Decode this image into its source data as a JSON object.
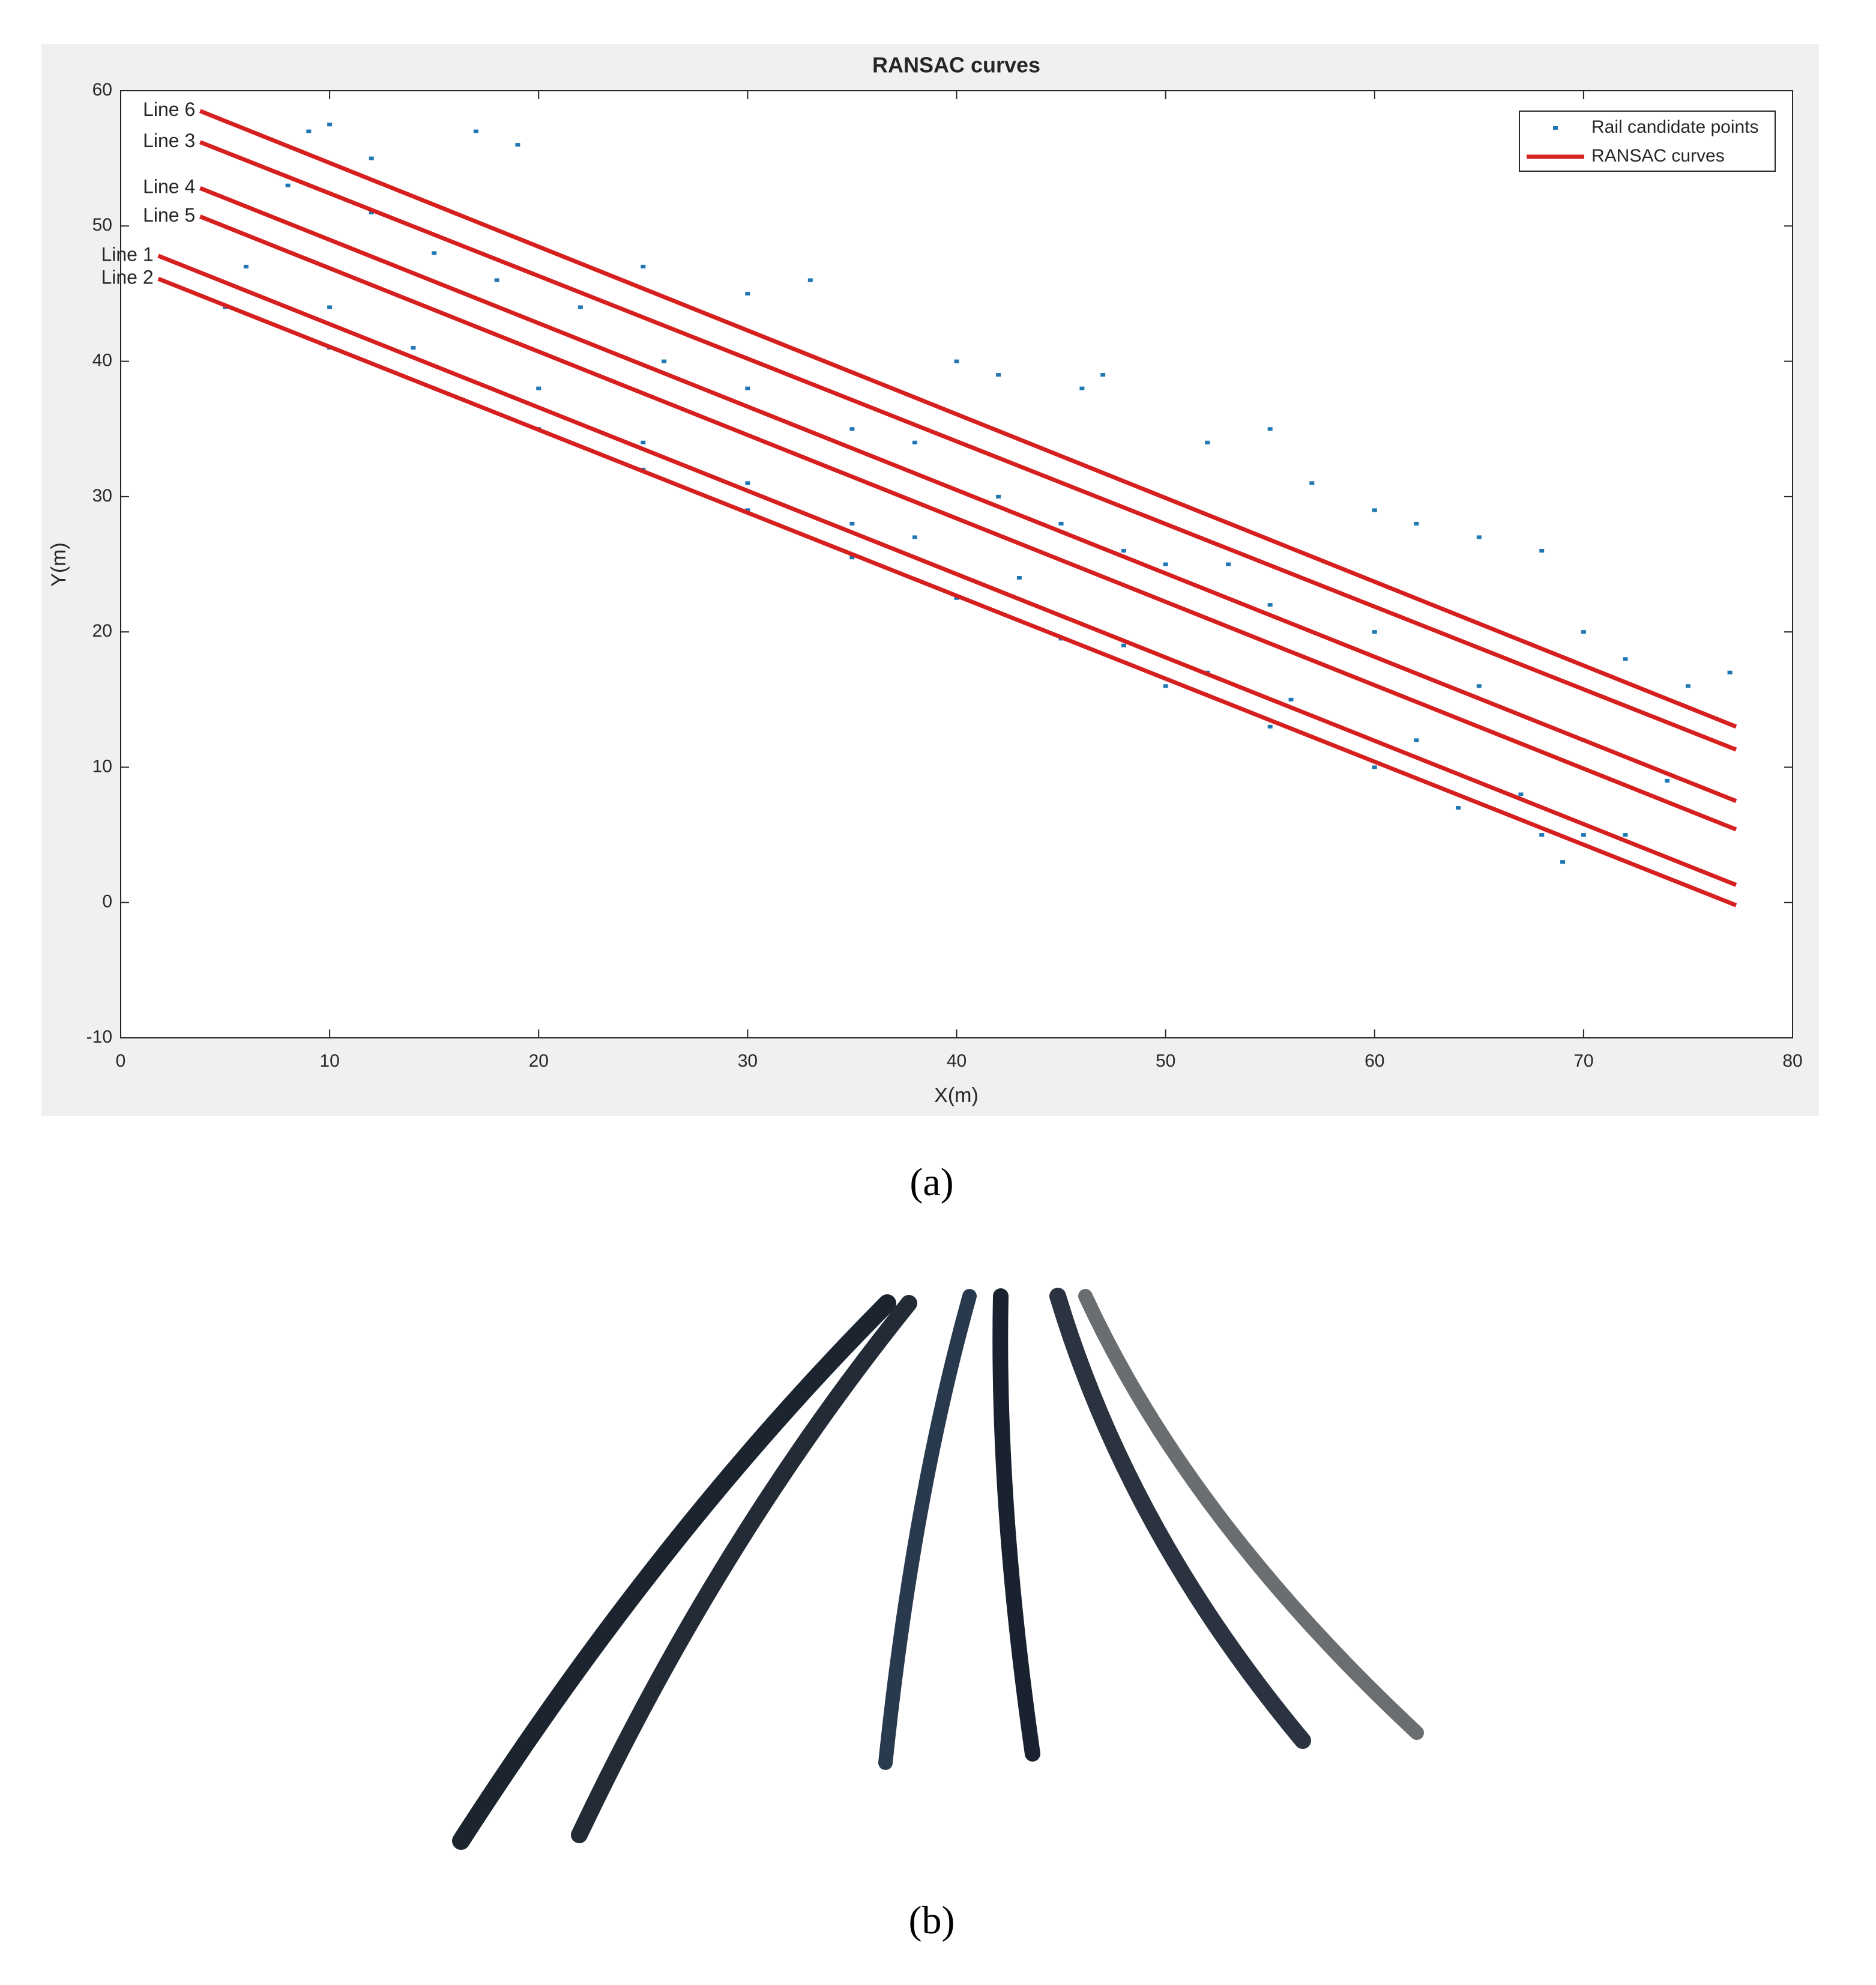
{
  "chart_data": {
    "type": "scatter",
    "title": "RANSAC curves",
    "x_label": "X(m)",
    "y_label": "Y(m)",
    "xlim": [
      0,
      80
    ],
    "xticks": [
      0,
      10,
      20,
      30,
      40,
      50,
      60,
      70,
      80
    ],
    "ylim": [
      -10,
      60
    ],
    "yticks": [
      -10,
      0,
      10,
      20,
      30,
      40,
      50,
      60
    ],
    "grid": false,
    "legend": "northeast",
    "series": [
      {
        "name": "Rail candidate points",
        "color": "#1f77b4",
        "x": [
          5,
          10,
          15,
          20,
          25,
          30,
          35,
          40,
          45,
          50,
          55,
          60,
          64,
          68,
          69,
          6,
          10,
          14,
          20,
          25,
          30,
          35,
          38,
          43,
          48,
          52,
          56,
          62,
          67,
          70,
          72,
          8,
          12,
          15,
          18,
          22,
          26,
          30,
          35,
          38,
          42,
          45,
          50,
          55,
          60,
          65,
          70,
          74,
          9,
          10,
          12,
          17,
          19,
          25,
          30,
          33,
          40,
          42,
          46,
          47,
          52,
          55,
          57,
          60,
          62,
          65,
          68,
          70,
          72,
          75,
          77,
          53,
          48
        ],
        "values": [
          44,
          41,
          38,
          35,
          32,
          29,
          25.5,
          22.5,
          19.5,
          16,
          13,
          10,
          7,
          5,
          3,
          47,
          44,
          41,
          38,
          34,
          31,
          28,
          27,
          24,
          19,
          17,
          15,
          12,
          8,
          5,
          5,
          53,
          51,
          48,
          46,
          44,
          40,
          38,
          35,
          34,
          30,
          28,
          25,
          22,
          20,
          16,
          12,
          9,
          57,
          57.5,
          55,
          57,
          56,
          47,
          45,
          46,
          40,
          39,
          38,
          39,
          34,
          35,
          31,
          29,
          28,
          27,
          26,
          20,
          18,
          16,
          17,
          25,
          26
        ]
      },
      {
        "name": "RANSAC curves",
        "color": "#d62020",
        "lines": [
          {
            "label": "Line 6",
            "x": [
              3.8,
              77.3
            ],
            "values": [
              58.5,
              13
            ]
          },
          {
            "label": "Line 3",
            "x": [
              3.8,
              77.3
            ],
            "values": [
              56.2,
              11.3
            ]
          },
          {
            "label": "Line 4",
            "x": [
              3.8,
              77.3
            ],
            "values": [
              52.8,
              7.5
            ]
          },
          {
            "label": "Line 5",
            "x": [
              3.8,
              77.3
            ],
            "values": [
              50.7,
              5.4
            ]
          },
          {
            "label": "Line 1",
            "x": [
              1.8,
              77.3
            ],
            "values": [
              47.8,
              1.3
            ]
          },
          {
            "label": "Line 2",
            "x": [
              1.8,
              77.3
            ],
            "values": [
              46.1,
              -0.2
            ]
          }
        ]
      }
    ]
  },
  "captions": [
    "(a)",
    "(b)"
  ]
}
